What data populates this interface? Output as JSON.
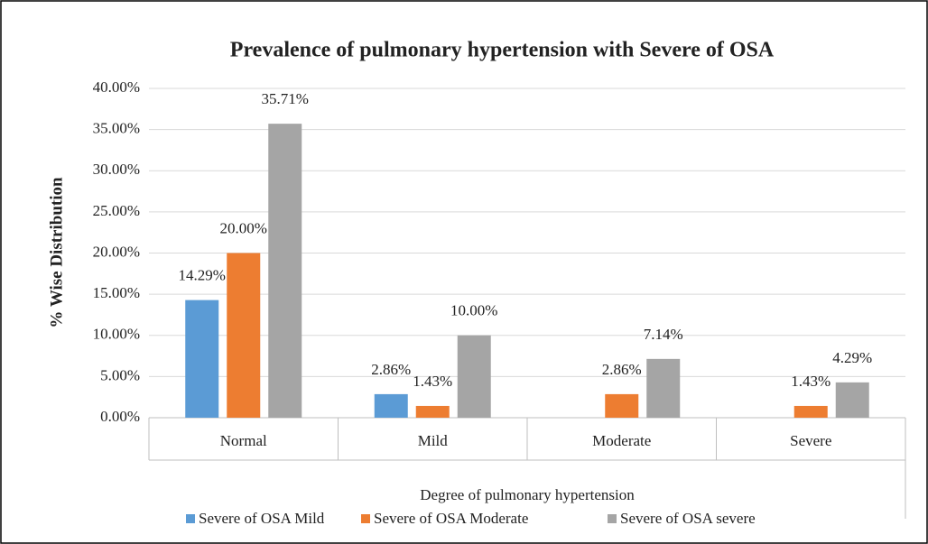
{
  "chart_data": {
    "type": "bar",
    "title": "Prevalence of pulmonary hypertension with Severe of OSA",
    "x_label": "Degree of pulmonary hypertension",
    "y_label": "% Wise Distribution",
    "categories": [
      "Normal",
      "Mild",
      "Moderate",
      "Severe"
    ],
    "series": [
      {
        "name": "Severe of OSA Mild",
        "color": "#5b9bd5",
        "values": [
          14.29,
          2.86,
          null,
          null
        ],
        "value_labels": [
          "14.29%",
          "2.86%",
          null,
          null
        ]
      },
      {
        "name": "Severe of OSA Moderate",
        "color": "#ed7d31",
        "values": [
          20.0,
          1.43,
          2.86,
          1.43
        ],
        "value_labels": [
          "20.00%",
          "1.43%",
          "2.86%",
          "1.43%"
        ]
      },
      {
        "name": "Severe of OSA severe",
        "color": "#a5a5a5",
        "values": [
          35.71,
          10.0,
          7.14,
          4.29
        ],
        "value_labels": [
          "35.71%",
          "10.00%",
          "7.14%",
          "4.29%"
        ]
      }
    ],
    "ylim": [
      0,
      40
    ],
    "yticks": [
      {
        "value": 0,
        "label": "0.00%"
      },
      {
        "value": 5,
        "label": "5.00%"
      },
      {
        "value": 10,
        "label": "10.00%"
      },
      {
        "value": 15,
        "label": "15.00%"
      },
      {
        "value": 20,
        "label": "20.00%"
      },
      {
        "value": 25,
        "label": "25.00%"
      },
      {
        "value": 30,
        "label": "30.00%"
      },
      {
        "value": 35,
        "label": "35.00%"
      },
      {
        "value": 40,
        "label": "40.00%"
      }
    ],
    "grid": true,
    "legend": "bottom"
  }
}
